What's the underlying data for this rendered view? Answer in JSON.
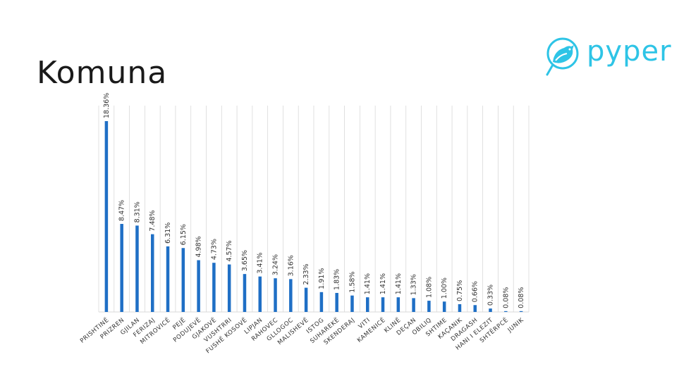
{
  "slide": {
    "title": "Komuna"
  },
  "logo": {
    "text": "pyper",
    "icon": "bird-icon",
    "color": "#2ec4e6"
  },
  "chart_data": {
    "type": "bar",
    "title": "",
    "xlabel": "",
    "ylabel": "",
    "bar_color": "#1f6fc5",
    "categories": [
      "PRISHTINË",
      "PRIZREN",
      "GJILAN",
      "FERIZAJ",
      "MITROVICË",
      "PEJË",
      "PODUJEVË",
      "GJAKOVË",
      "VUSHTRRI",
      "FUSHË KOSOVË",
      "LIPJAN",
      "RAHOVEC",
      "GLLOGOC",
      "MALISHEVË",
      "ISTOG",
      "SUHAREKË",
      "SKENDERAJ",
      "VITI",
      "KAMENICË",
      "KLINË",
      "DEÇAN",
      "OBILIQ",
      "SHTIME",
      "KAÇANIK",
      "DRAGASH",
      "HANI I ELEZIT",
      "SHTËRPCË",
      "JUNIK"
    ],
    "values": [
      18.36,
      8.47,
      8.31,
      7.48,
      6.31,
      6.15,
      4.98,
      4.73,
      4.57,
      3.65,
      3.41,
      3.24,
      3.16,
      2.33,
      1.91,
      1.83,
      1.58,
      1.41,
      1.41,
      1.41,
      1.33,
      1.08,
      1.0,
      0.75,
      0.66,
      0.33,
      0.08,
      0.08
    ],
    "labels": [
      "18.36%",
      "8.47%",
      "8.31%",
      "7.48%",
      "6.31%",
      "6.15%",
      "4.98%",
      "4.73%",
      "4.57%",
      "3.65%",
      "3.41%",
      "3.24%",
      "3.16%",
      "2.33%",
      "1.91%",
      "1.83%",
      "1.58%",
      "1.41%",
      "1.41%",
      "1.41%",
      "1.33%",
      "1.08%",
      "1.00%",
      "0.75%",
      "0.66%",
      "0.33%",
      "0.08%",
      "0.08%"
    ],
    "grid": "vertical"
  }
}
